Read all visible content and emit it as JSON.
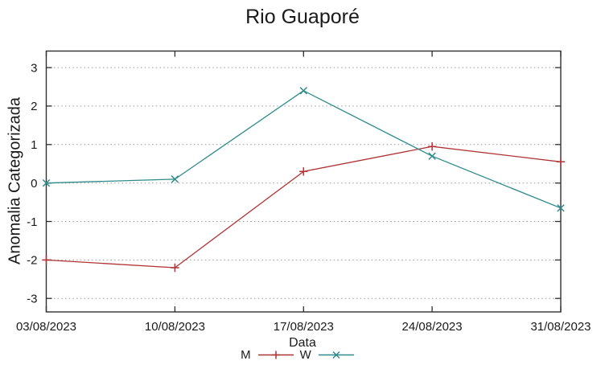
{
  "chart_data": {
    "type": "line",
    "title": "Rio Guaporé",
    "xlabel": "Data",
    "ylabel": "Anomalia Categorizada",
    "x": [
      "03/08/2023",
      "10/08/2023",
      "17/08/2023",
      "24/08/2023",
      "31/08/2023"
    ],
    "series": [
      {
        "name": "M",
        "marker": "plus",
        "color": "#b03333",
        "values": [
          -2.0,
          -2.2,
          0.3,
          0.95,
          0.55
        ]
      },
      {
        "name": "W",
        "marker": "cross",
        "color": "#2e8b8b",
        "values": [
          0.0,
          0.1,
          2.4,
          0.7,
          -0.65
        ]
      }
    ],
    "yticks": [
      -3,
      -2,
      -1,
      0,
      1,
      2,
      3
    ],
    "ylim": [
      -3.35,
      3.43
    ],
    "grid": "horizontal-dotted",
    "legend_position": "bottom-center",
    "axis_color": "#2f2f2f",
    "grid_color": "#999999",
    "text_color": "#1a1a1a"
  }
}
